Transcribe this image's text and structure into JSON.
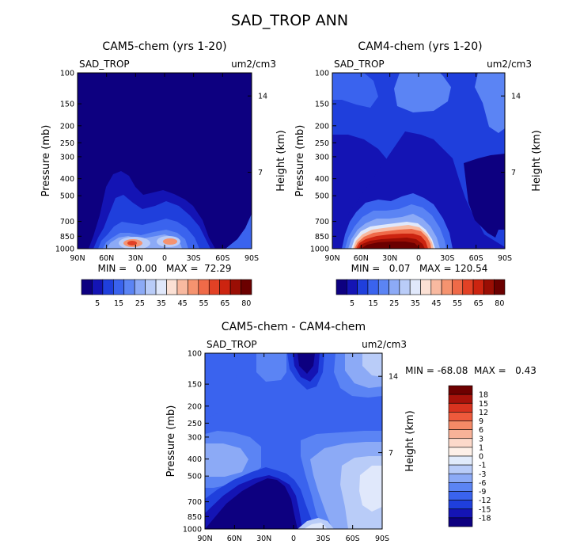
{
  "title": "SAD_TROP ANN",
  "panels": [
    {
      "id": "cam5",
      "title": "CAM5-chem (yrs 1-20)",
      "var_label": "SAD_TROP",
      "units": "um2/cm3",
      "ylabel": "Pressure (mb)",
      "ylabel_right": "Height (km)",
      "stats_text": "MIN =   0.00   MAX =  72.29",
      "colorbar_type": "abs"
    },
    {
      "id": "cam4",
      "title": "CAM4-chem (yrs 1-20)",
      "var_label": "SAD_TROP",
      "units": "um2/cm3",
      "ylabel": "Pressure (mb)",
      "ylabel_right": "Height (km)",
      "stats_text": "MIN =   0.07   MAX = 120.54",
      "colorbar_type": "abs"
    },
    {
      "id": "diff",
      "title": "CAM5-chem - CAM4-chem",
      "var_label": "SAD_TROP",
      "units": "um2/cm3",
      "ylabel": "Pressure (mb)",
      "ylabel_right": "Height (km)",
      "stats_text": "MIN = -68.08  MAX =   0.43",
      "colorbar_type": "diff"
    }
  ],
  "x_ticks": [
    "90N",
    "60N",
    "30N",
    "0",
    "30S",
    "60S",
    "90S"
  ],
  "p_ticks": [
    "100",
    "150",
    "200",
    "250",
    "300",
    "400",
    "500",
    "700",
    "850",
    "1000"
  ],
  "h_ticks": [
    "14",
    "7"
  ],
  "abs_colorbar": {
    "labels": [
      "5",
      "15",
      "25",
      "35",
      "45",
      "55",
      "65",
      "80"
    ],
    "colors": [
      "#0d0080",
      "#1414b4",
      "#1f3fdc",
      "#3a63ee",
      "#5b84f4",
      "#8caaf6",
      "#b9ccf8",
      "#e0e8fb",
      "#fbe0d4",
      "#f8b9a0",
      "#f5936f",
      "#ef6a48",
      "#e24125",
      "#cc2410",
      "#9a0e04",
      "#6b0000"
    ]
  },
  "diff_colorbar": {
    "labels": [
      "18",
      "15",
      "12",
      "9",
      "6",
      "3",
      "1",
      "0",
      "-1",
      "-3",
      "-6",
      "-9",
      "-12",
      "-15",
      "-18"
    ],
    "colors": [
      "#6e0000",
      "#a8120a",
      "#d9331f",
      "#ee5a3c",
      "#f58a66",
      "#f8b298",
      "#fcd9ca",
      "#fdf0e8",
      "#e1ebfb",
      "#b9ccf8",
      "#8caaf6",
      "#5b84f4",
      "#3a63ee",
      "#1f3fdc",
      "#1414b4",
      "#0d0080"
    ]
  },
  "chart_data": [
    {
      "type": "heatmap",
      "title": "CAM5-chem (yrs 1-20)",
      "variable": "SAD_TROP",
      "units": "um2/cm3",
      "x": [
        "90N",
        "60N",
        "30N",
        "0",
        "30S",
        "60S",
        "90S"
      ],
      "y_pressure_mb": [
        100,
        150,
        200,
        250,
        300,
        400,
        500,
        700,
        850,
        1000
      ],
      "y_height_km_ticks": [
        14,
        7
      ],
      "levels": [
        5,
        10,
        15,
        20,
        25,
        30,
        35,
        40,
        45,
        50,
        55,
        60,
        65,
        70,
        80
      ],
      "min": 0.0,
      "max": 72.29,
      "xlabel": "",
      "ylabel": "Pressure (mb)",
      "ylabel_right": "Height (km)"
    },
    {
      "type": "heatmap",
      "title": "CAM4-chem (yrs 1-20)",
      "variable": "SAD_TROP",
      "units": "um2/cm3",
      "x": [
        "90N",
        "60N",
        "30N",
        "0",
        "30S",
        "60S",
        "90S"
      ],
      "y_pressure_mb": [
        100,
        150,
        200,
        250,
        300,
        400,
        500,
        700,
        850,
        1000
      ],
      "y_height_km_ticks": [
        14,
        7
      ],
      "levels": [
        5,
        10,
        15,
        20,
        25,
        30,
        35,
        40,
        45,
        50,
        55,
        60,
        65,
        70,
        80
      ],
      "min": 0.07,
      "max": 120.54,
      "xlabel": "",
      "ylabel": "Pressure (mb)",
      "ylabel_right": "Height (km)"
    },
    {
      "type": "heatmap",
      "title": "CAM5-chem - CAM4-chem",
      "variable": "SAD_TROP",
      "units": "um2/cm3",
      "x": [
        "90N",
        "60N",
        "30N",
        "0",
        "30S",
        "60S",
        "90S"
      ],
      "y_pressure_mb": [
        100,
        150,
        200,
        250,
        300,
        400,
        500,
        700,
        850,
        1000
      ],
      "y_height_km_ticks": [
        14,
        7
      ],
      "levels": [
        -18,
        -15,
        -12,
        -9,
        -6,
        -3,
        -1,
        0,
        1,
        3,
        6,
        9,
        12,
        15,
        18
      ],
      "min": -68.08,
      "max": 0.43,
      "xlabel": "",
      "ylabel": "Pressure (mb)",
      "ylabel_right": "Height (km)"
    }
  ]
}
